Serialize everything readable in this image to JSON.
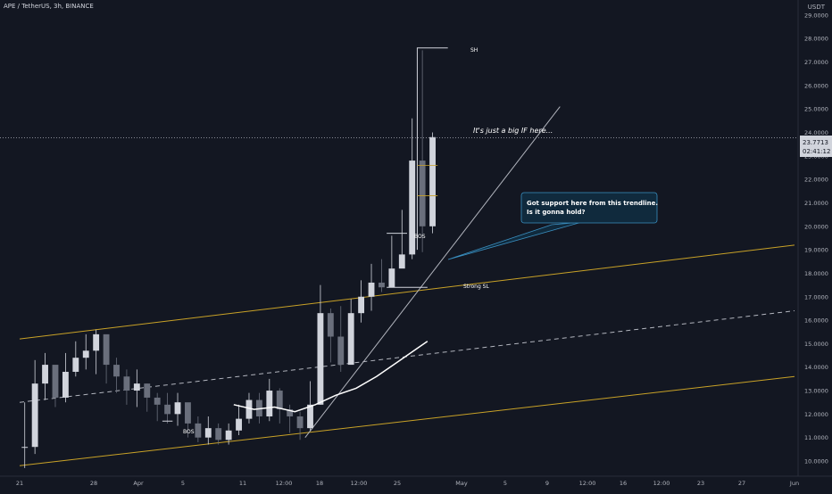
{
  "header": {
    "symbol": "APE / TetherUS, 3h, BINANCE",
    "quote_currency": "USDT"
  },
  "price_badge": {
    "value": "23.7713",
    "countdown": "02:41:12"
  },
  "colors": {
    "background": "#131722",
    "bull": "#d1d4dc",
    "bear": "#6a6f7c",
    "channel": "#c9a227",
    "trendline": "#b2b5be",
    "moving_average": "#ffffff",
    "callout_fill": "#102a3d",
    "callout_border": "#3a8fc0"
  },
  "chart_data": {
    "type": "candlestick",
    "x": [
      "2022-03-21",
      "2022-03-22",
      "2022-03-23",
      "2022-03-24",
      "2022-03-25",
      "2022-03-26",
      "2022-03-27",
      "2022-03-28",
      "2022-03-29",
      "2022-03-30",
      "2022-03-31",
      "2022-04-01",
      "2022-04-02",
      "2022-04-03",
      "2022-04-04",
      "2022-04-05",
      "2022-04-06",
      "2022-04-07",
      "2022-04-08",
      "2022-04-09",
      "2022-04-10",
      "2022-04-11",
      "2022-04-12",
      "2022-04-13",
      "2022-04-14",
      "2022-04-15",
      "2022-04-16",
      "2022-04-17",
      "2022-04-18",
      "2022-04-19",
      "2022-04-20",
      "2022-04-21",
      "2022-04-22",
      "2022-04-23",
      "2022-04-24",
      "2022-04-25",
      "2022-04-26",
      "2022-04-27",
      "2022-04-28",
      "2022-04-29",
      "2022-04-30"
    ],
    "close": [
      10.6,
      13.3,
      14.1,
      12.7,
      13.8,
      14.4,
      14.7,
      15.4,
      14.1,
      13.6,
      13.0,
      13.3,
      12.7,
      12.4,
      12.0,
      12.5,
      11.6,
      11.0,
      11.4,
      10.9,
      11.3,
      11.8,
      12.6,
      11.9,
      13.0,
      12.2,
      11.9,
      11.4,
      12.4,
      16.3,
      15.3,
      14.1,
      16.3,
      17.0,
      17.6,
      17.4,
      18.2,
      18.8,
      22.8,
      20.0,
      23.8
    ],
    "high": [
      12.5,
      14.3,
      14.6,
      14.0,
      14.6,
      15.1,
      15.4,
      15.6,
      15.0,
      14.4,
      13.9,
      13.9,
      13.3,
      12.9,
      12.9,
      12.9,
      12.3,
      11.9,
      11.9,
      11.6,
      11.6,
      12.4,
      12.9,
      12.9,
      13.5,
      13.1,
      12.4,
      12.1,
      13.4,
      17.5,
      16.5,
      16.6,
      16.9,
      17.7,
      18.4,
      18.6,
      19.6,
      20.7,
      24.6,
      27.5,
      24.0
    ],
    "low": [
      9.7,
      10.3,
      12.6,
      12.3,
      12.5,
      13.6,
      13.9,
      13.7,
      13.3,
      12.9,
      12.4,
      12.3,
      12.1,
      11.7,
      11.6,
      11.5,
      11.0,
      10.8,
      10.7,
      10.7,
      10.7,
      11.1,
      11.6,
      11.6,
      11.7,
      11.6,
      11.2,
      10.9,
      11.3,
      12.4,
      14.2,
      13.8,
      14.3,
      15.9,
      16.4,
      17.2,
      17.5,
      18.3,
      18.6,
      18.9,
      19.7
    ],
    "moving_average": {
      "x": [
        "2022-04-11",
        "2022-04-13",
        "2022-04-15",
        "2022-04-17",
        "2022-04-19",
        "2022-04-21",
        "2022-04-23",
        "2022-04-25",
        "2022-04-27",
        "2022-04-29",
        "2022-04-30"
      ],
      "y": [
        12.4,
        12.2,
        12.3,
        12.1,
        12.4,
        12.8,
        13.1,
        13.6,
        14.2,
        14.8,
        15.1
      ]
    },
    "overlays": {
      "channel_upper": [
        [
          "2022-03-21",
          15.2
        ],
        [
          "2022-06-05",
          19.2
        ]
      ],
      "channel_middle": [
        [
          "2022-03-21",
          12.5
        ],
        [
          "2022-06-05",
          16.4
        ]
      ],
      "channel_lower": [
        [
          "2022-03-21",
          9.8
        ],
        [
          "2022-06-05",
          13.6
        ]
      ],
      "trendline": [
        [
          "2022-04-18",
          11.0
        ],
        [
          "2022-05-13",
          25.1
        ]
      ],
      "sh_line": [
        [
          "2022-04-29",
          19.0
        ],
        [
          "2022-04-29",
          27.6
        ],
        [
          "2022-05-02",
          27.6
        ]
      ],
      "strong_sl_line": [
        [
          "2022-04-26",
          17.4
        ],
        [
          "2022-04-30",
          17.4
        ]
      ],
      "bos_lines": [
        [
          [
            "2022-04-04",
            11.7
          ],
          [
            "2022-04-05",
            11.7
          ]
        ],
        [
          [
            "2022-04-26",
            19.7
          ],
          [
            "2022-04-28",
            19.7
          ]
        ]
      ],
      "level_ticks": [
        22.6,
        21.3
      ],
      "current_price": 23.7713
    },
    "ylim": [
      10.0,
      29.3
    ],
    "yticks": [
      "10.0000",
      "11.0000",
      "12.0000",
      "13.0000",
      "14.0000",
      "15.0000",
      "16.0000",
      "17.0000",
      "18.0000",
      "19.0000",
      "20.0000",
      "21.0000",
      "22.0000",
      "23.0000",
      "24.0000",
      "25.0000",
      "26.0000",
      "27.0000",
      "28.0000",
      "29.0000"
    ],
    "xticks": [
      "21",
      "28",
      "Apr",
      "5",
      "11",
      "12:00",
      "18",
      "12:00",
      "25",
      "May",
      "5",
      "9",
      "12:00",
      "16",
      "12:00",
      "23",
      "27",
      "Jun"
    ],
    "annotations": {
      "sh": "SH",
      "bos_1": "BOS",
      "bos_2": "BOS",
      "strong_sl": "Strong SL",
      "note_top": "It's just a big IF here...",
      "callout_line1": "Got support here from this trendline.",
      "callout_line2": "Is it gonna hold?"
    }
  }
}
